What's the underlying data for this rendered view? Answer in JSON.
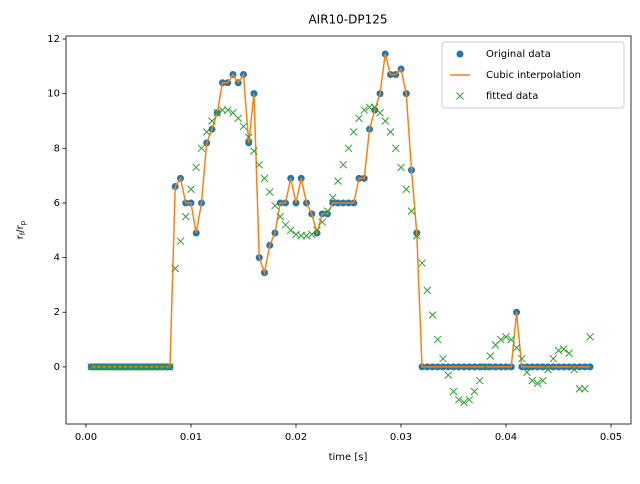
{
  "chart_data": {
    "type": "line",
    "title": "AIR10-DP125",
    "xlabel": "time [s]",
    "ylabel": "rf/rp",
    "x": [
      0.0005,
      0.001,
      0.0015,
      0.002,
      0.0025,
      0.003,
      0.0035,
      0.004,
      0.0045,
      0.005,
      0.0055,
      0.006,
      0.0065,
      0.007,
      0.0075,
      0.008,
      0.0085,
      0.009,
      0.0095,
      0.01,
      0.0105,
      0.011,
      0.0115,
      0.012,
      0.0125,
      0.013,
      0.0135,
      0.014,
      0.0145,
      0.015,
      0.0155,
      0.016,
      0.0165,
      0.017,
      0.0175,
      0.018,
      0.0185,
      0.019,
      0.0195,
      0.02,
      0.0205,
      0.021,
      0.0215,
      0.022,
      0.0225,
      0.023,
      0.0235,
      0.024,
      0.0245,
      0.025,
      0.0255,
      0.026,
      0.0265,
      0.027,
      0.0275,
      0.028,
      0.0285,
      0.029,
      0.0295,
      0.03,
      0.0305,
      0.031,
      0.0315,
      0.032,
      0.0325,
      0.033,
      0.0335,
      0.034,
      0.0345,
      0.035,
      0.0355,
      0.036,
      0.0365,
      0.037,
      0.0375,
      0.038,
      0.0385,
      0.039,
      0.0395,
      0.04,
      0.0405,
      0.041,
      0.0415,
      0.042,
      0.0425,
      0.043,
      0.0435,
      0.044,
      0.0445,
      0.045,
      0.0455,
      0.046,
      0.0465,
      0.047,
      0.0475,
      0.048
    ],
    "series": [
      {
        "name": "Original data",
        "color": "#1f77b4",
        "style": "dot",
        "values": [
          0,
          0,
          0,
          0,
          0,
          0,
          0,
          0,
          0,
          0,
          0,
          0,
          0,
          0,
          0,
          0,
          6.6,
          6.9,
          6.0,
          6.0,
          4.9,
          6.0,
          8.2,
          8.7,
          9.3,
          10.4,
          10.4,
          10.7,
          10.4,
          10.7,
          8.2,
          10.0,
          4.0,
          3.45,
          4.45,
          4.9,
          6.0,
          6.0,
          6.9,
          6.0,
          6.9,
          6.0,
          5.6,
          4.9,
          5.6,
          5.6,
          6.0,
          6.0,
          6.0,
          6.0,
          6.0,
          6.9,
          6.9,
          8.7,
          9.4,
          10.0,
          11.45,
          10.7,
          10.7,
          10.9,
          10.0,
          7.2,
          4.9,
          0,
          0,
          0,
          0,
          0,
          0,
          0,
          0,
          0,
          0,
          0,
          0,
          0,
          0,
          0,
          0,
          0,
          0,
          2.0,
          0,
          0,
          0,
          0,
          0,
          0,
          0,
          0,
          0,
          0,
          0,
          0,
          0,
          0
        ]
      },
      {
        "name": "Cubic interpolation",
        "color": "#ff7f0e",
        "style": "line",
        "values": [
          0,
          0,
          0,
          0,
          0,
          0,
          0,
          0,
          0,
          0,
          0,
          0,
          0,
          0,
          0,
          0,
          6.6,
          6.9,
          6.0,
          6.0,
          4.9,
          6.0,
          8.2,
          8.7,
          9.3,
          10.4,
          10.4,
          10.7,
          10.4,
          10.7,
          8.2,
          10.0,
          4.0,
          3.45,
          4.45,
          4.9,
          6.0,
          6.0,
          6.9,
          6.0,
          6.9,
          6.0,
          5.6,
          4.9,
          5.6,
          5.6,
          6.0,
          6.0,
          6.0,
          6.0,
          6.0,
          6.9,
          6.9,
          8.7,
          9.4,
          10.0,
          11.45,
          10.7,
          10.7,
          10.9,
          10.0,
          7.2,
          4.9,
          0,
          0,
          0,
          0,
          0,
          0,
          0,
          0,
          0,
          0,
          0,
          0,
          0,
          0,
          0,
          0,
          0,
          0,
          2.0,
          0,
          0,
          0,
          0,
          0,
          0,
          0,
          0,
          0,
          0,
          0,
          0,
          0,
          0
        ]
      },
      {
        "name": "fitted data",
        "color": "#2ca02c",
        "style": "cross",
        "values": [
          0,
          0,
          0,
          0,
          0,
          0,
          0,
          0,
          0,
          0,
          0,
          0,
          0,
          0,
          0,
          0,
          3.6,
          4.6,
          5.5,
          6.5,
          7.3,
          8.0,
          8.6,
          9.0,
          9.3,
          9.4,
          9.4,
          9.3,
          9.1,
          8.8,
          8.4,
          7.9,
          7.4,
          6.9,
          6.4,
          5.9,
          5.5,
          5.2,
          5.0,
          4.85,
          4.8,
          4.8,
          4.85,
          5.0,
          5.3,
          5.7,
          6.2,
          6.8,
          7.4,
          8.0,
          8.6,
          9.1,
          9.4,
          9.5,
          9.5,
          9.3,
          9.0,
          8.6,
          8.0,
          7.3,
          6.5,
          5.7,
          4.8,
          3.8,
          2.8,
          1.9,
          1.0,
          0.3,
          -0.3,
          -0.9,
          -1.2,
          -1.3,
          -1.2,
          -0.9,
          -0.5,
          0.0,
          0.4,
          0.8,
          1.0,
          1.1,
          1.0,
          0.7,
          0.3,
          -0.2,
          -0.5,
          -0.6,
          -0.5,
          -0.1,
          0.3,
          0.6,
          0.65,
          0.5,
          -0.1,
          -0.8,
          -0.8,
          1.1
        ]
      }
    ],
    "xlim": [
      -0.0019,
      0.0519
    ],
    "ylim": [
      -2.09,
      12.11
    ],
    "xticks": [
      {
        "value": 0,
        "label": "0.00"
      },
      0.01,
      0.02,
      0.03,
      0.04,
      0.05
    ],
    "yticks": [
      0,
      2,
      4,
      6,
      8,
      10,
      12
    ],
    "legend": "upper right"
  }
}
